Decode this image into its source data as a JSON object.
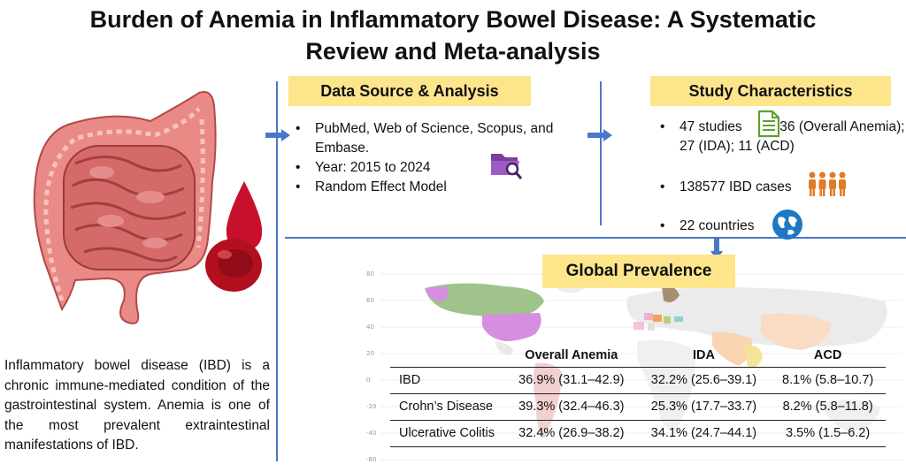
{
  "title": {
    "line1": "Burden of Anemia in Inflammatory Bowel Disease: A Systematic",
    "line2": "Review and Meta-analysis"
  },
  "data_source": {
    "heading": "Data Source & Analysis",
    "items": [
      "PubMed, Web of Science, Scopus, and Embase.",
      "Year: 2015 to 2024",
      "Random Effect Model"
    ]
  },
  "study": {
    "heading": "Study Characteristics",
    "items": [
      "47 studies",
      "36 (Overall Anemia); 27 (IDA); 11 (ACD)",
      "138577 IBD cases",
      "22 countries"
    ]
  },
  "global": {
    "heading": "Global Prevalence",
    "columns": [
      "",
      "Overall Anemia",
      "IDA",
      "ACD"
    ],
    "rows": [
      [
        "IBD",
        "36.9% (31.1–42.9)",
        "32.2% (25.6–39.1)",
        "8.1% (5.8–10.7)"
      ],
      [
        "Crohn’s Disease",
        "39.3% (32.4–46.3)",
        "25.3% (17.7–33.7)",
        "8.2% (5.8–11.8)"
      ],
      [
        "Ulcerative Colitis",
        "32.4% (26.9–38.2)",
        "34.1% (24.7–44.1)",
        "3.5% (1.5–6.2)"
      ]
    ],
    "y_ticks": [
      "80",
      "60",
      "40",
      "20",
      "0",
      "-20",
      "-40",
      "-60"
    ]
  },
  "description": "Inflammatory bowel disease (IBD) is a chronic immune-mediated condition of the gastrointestinal system. Anemia is one of the most prevalent extraintestinal manifestations of IBD.",
  "colors": {
    "accent_line": "#4a78c8",
    "heading_bg": "#fde58c",
    "intestine": "#e07a7a",
    "blood": "#c8102e",
    "people": "#e07b28",
    "folder": "#7b3fa0",
    "globe": "#1e78c2",
    "doc": "#5da132"
  },
  "icons": {
    "intestine": "intestine-illustration",
    "blood_drop": "blood-drop-icon",
    "folder": "folder-search-icon",
    "document": "document-icon",
    "people": "people-group-icon",
    "globe": "globe-icon",
    "world_map": "world-map"
  }
}
